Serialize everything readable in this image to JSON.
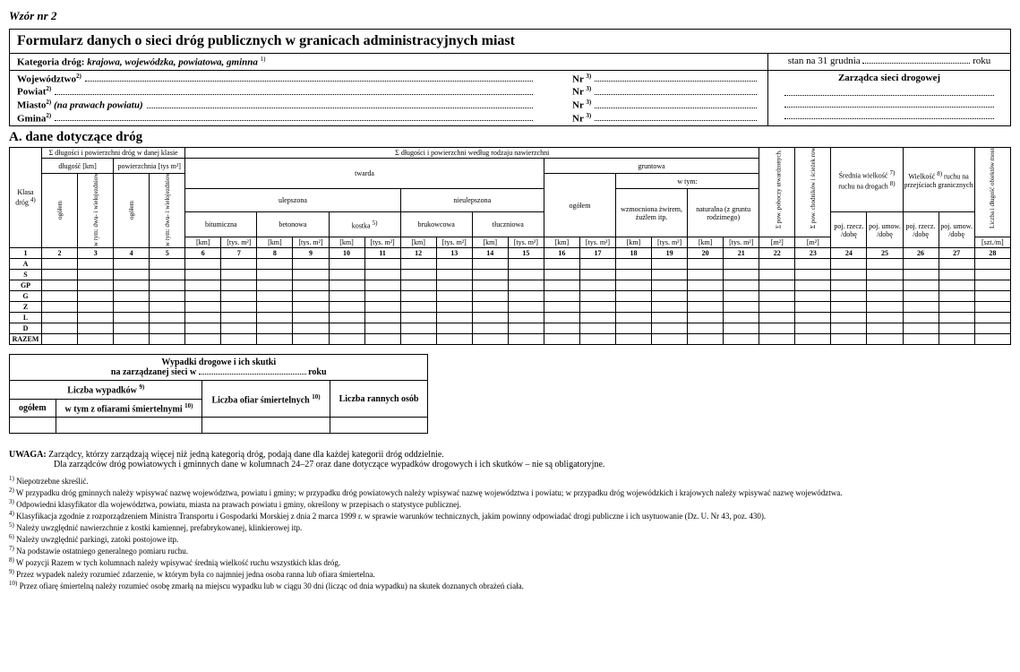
{
  "wzor": "Wzór nr 2",
  "title": "Formularz danych o sieci dróg publicznych w granicach administracyjnych miast",
  "kategoria_label": "Kategoria dróg:",
  "kategoria_val": "krajowa, wojewódzka, powiatowa, gminna",
  "kategoria_sup": "1)",
  "stan_label": "stan na 31 grudnia",
  "stan_suffix": "roku",
  "meta": {
    "woj": "Województwo",
    "woj_sup": "2)",
    "pow": "Powiat",
    "pow_sup": "2)",
    "miasto": "Miasto",
    "miasto_sup": "2)",
    "miasto_ital": "(na prawach powiatu)",
    "gmina": "Gmina",
    "gmina_sup": "2)",
    "nr": "Nr",
    "nr_sup": "3)",
    "zarzadca": "Zarządca sieci drogowej"
  },
  "sectionA": "A. dane dotyczące dróg",
  "headers": {
    "klasa": "Klasa dróg",
    "klasa_sup": "4)",
    "sigma_klasa": "Σ długości i powierzchni dróg w danej klasie",
    "dlugosc": "długość [km]",
    "powierzchnia": "powierzchnia [tys m²]",
    "sigma_rodzaj": "Σ długości i powierzchni według rodzaju nawierzchni",
    "twarda": "twarda",
    "gruntowa": "gruntowa",
    "ulepszona": "ulepszona",
    "nieulepszona": "nieulepszona",
    "bitumiczna": "bitumiczna",
    "betonowa": "betonowa",
    "kostka": "kostka",
    "kostka_sup": "5)",
    "brukowcowa": "brukowcowa",
    "tluczniowa": "tłuczniowa",
    "wtym": "w tym:",
    "wzmocniona": "wzmocniona żwirem, żużlem itp.",
    "naturalna": "naturalna (z gruntu rodzimego)",
    "ogolem": "ogółem",
    "ogolem_v": "ogółem",
    "wtym_dwu": "w tym: dwu- i wielojezdniowe",
    "km": "[km]",
    "tysm2": "[tys. m²]",
    "m2": "[m²]",
    "pow_poboczy": "Σ pow. poboczy utwardzonych, zatok autobusowych itp.",
    "pow_poboczy_sup": "6)",
    "pow_chodnikow": "Σ pow. chodników i ścieżek rowerowych",
    "srednia": "Średnia wielkość",
    "srednia_sup": "7)",
    "ruchu": "ruchu na drogach",
    "ruchu_sup": "8)",
    "wielkosc_ruchu": "Wielkość",
    "wielkosc_ruchu_sup": "8)",
    "ruchu_na": "ruchu na przejściach granicznych",
    "liczba_obiektow": "Liczba i długość obiektów mostowych, tuneli i promów w osi drogi",
    "poj_rzecz": "poj. rzecz. /dobę",
    "poj_umow": "poj. umow. /dobę",
    "szt_m": "[szt./m]"
  },
  "colnums": [
    "1",
    "2",
    "3",
    "4",
    "5",
    "6",
    "7",
    "8",
    "9",
    "10",
    "11",
    "12",
    "13",
    "14",
    "15",
    "16",
    "17",
    "18",
    "19",
    "20",
    "21",
    "22",
    "23",
    "24",
    "25",
    "26",
    "27",
    "28"
  ],
  "rows": [
    "A",
    "S",
    "GP",
    "G",
    "Z",
    "L",
    "D",
    "RAZEM"
  ],
  "wypadki": {
    "title1": "Wypadki drogowe i ich skutki",
    "title2_a": "na zarządzanej sieci w",
    "title2_b": "roku",
    "liczba_wyp": "Liczba wypadków",
    "liczba_wyp_sup": "9)",
    "ogolem": "ogółem",
    "wtym_ofiar": "w tym z ofiarami śmiertelnymi",
    "wtym_ofiar_sup": "10)",
    "liczba_ofiar": "Liczba ofiar śmiertelnych",
    "liczba_ofiar_sup": "10)",
    "liczba_rannych": "Liczba rannych osób"
  },
  "uwaga_label": "UWAGA:",
  "uwaga1": "Zarządcy, którzy zarządzają więcej niż jedną kategorią dróg, podają dane dla każdej kategorii dróg oddzielnie.",
  "uwaga2": "Dla zarządców dróg powiatowych i gminnych dane w kolumnach 24–27 oraz dane dotyczące wypadków drogowych i ich skutków – nie są obligatoryjne.",
  "footnotes": [
    {
      "n": "1)",
      "t": "Niepotrzebne skreślić."
    },
    {
      "n": "2)",
      "t": "W przypadku dróg gminnych należy wpisywać nazwę województwa, powiatu i gminy; w przypadku dróg powiatowych należy wpisywać nazwę województwa i powiatu; w przypadku dróg wojewódzkich i krajowych należy wpisywać nazwę województwa."
    },
    {
      "n": "3)",
      "t": "Odpowiedni klasyfikator dla województwa, powiatu, miasta na prawach powiatu i gminy, określony w przepisach o statystyce publicznej."
    },
    {
      "n": "4)",
      "t": "Klasyfikacja zgodnie z rozporządzeniem Ministra Transportu i Gospodarki Morskiej z dnia 2 marca 1999 r. w sprawie warunków technicznych, jakim powinny odpowiadać drogi publiczne i ich usytuowanie (Dz. U. Nr 43, poz. 430)."
    },
    {
      "n": "5)",
      "t": "Należy uwzględnić nawierzchnie z kostki kamiennej, prefabrykowanej, klinkierowej itp."
    },
    {
      "n": "6)",
      "t": "Należy uwzględnić parkingi, zatoki postojowe itp."
    },
    {
      "n": "7)",
      "t": "Na podstawie ostatniego generalnego pomiaru ruchu."
    },
    {
      "n": "8)",
      "t": "W pozycji Razem w tych kolumnach należy wpisywać średnią wielkość ruchu wszystkich klas dróg."
    },
    {
      "n": "9)",
      "t": "Przez wypadek należy rozumieć zdarzenie, w którym była co najmniej jedna osoba ranna lub ofiara śmiertelna."
    },
    {
      "n": "10)",
      "t": "Przez ofiarę śmiertelną należy rozumieć osobę zmarłą na miejscu wypadku lub w ciągu 30 dni (licząc od dnia wypadku) na skutek doznanych obrażeń ciała."
    }
  ]
}
